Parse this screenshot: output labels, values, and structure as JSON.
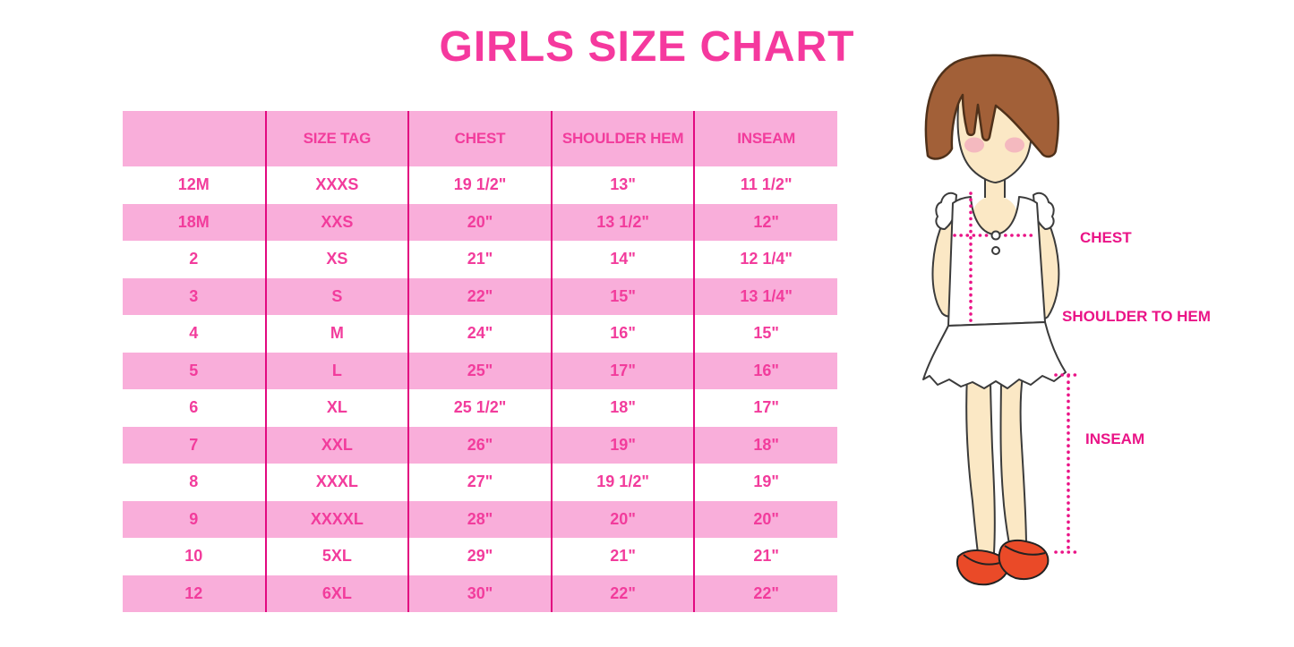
{
  "title": "GIRLS SIZE CHART",
  "chart_data": {
    "type": "table",
    "title": "GIRLS SIZE CHART",
    "columns": [
      "",
      "SIZE TAG",
      "CHEST",
      "SHOULDER HEM",
      "INSEAM"
    ],
    "rows": [
      [
        "12M",
        "XXXS",
        "19 1/2\"",
        "13\"",
        "11 1/2\""
      ],
      [
        "18M",
        "XXS",
        "20\"",
        "13 1/2\"",
        "12\""
      ],
      [
        "2",
        "XS",
        "21\"",
        "14\"",
        "12 1/4\""
      ],
      [
        "3",
        "S",
        "22\"",
        "15\"",
        "13 1/4\""
      ],
      [
        "4",
        "M",
        "24\"",
        "16\"",
        "15\""
      ],
      [
        "5",
        "L",
        "25\"",
        "17\"",
        "16\""
      ],
      [
        "6",
        "XL",
        "25 1/2\"",
        "18\"",
        "17\""
      ],
      [
        "7",
        "XXL",
        "26\"",
        "19\"",
        "18\""
      ],
      [
        "8",
        "XXXL",
        "27\"",
        "19 1/2\"",
        "19\""
      ],
      [
        "9",
        "XXXXL",
        "28\"",
        "20\"",
        "20\""
      ],
      [
        "10",
        "5XL",
        "29\"",
        "21\"",
        "21\""
      ],
      [
        "12",
        "6XL",
        "30\"",
        "22\"",
        "22\""
      ]
    ]
  },
  "diagram": {
    "chest_label": "CHEST",
    "shoulder_to_hem_label": "SHOULDER TO HEM",
    "inseam_label": "INSEAM"
  },
  "colors": {
    "title_text": "#F5399E",
    "accent_text": "#F23C9C",
    "row_pink": "#F9AEDA",
    "column_line": "#E20980",
    "dotted_line": "#EA1487",
    "hair": "#A26038",
    "hair_outline": "#4F311A",
    "skin": "#FBE8C5",
    "outline": "#3B3B3B",
    "blush": "#F2ACBD",
    "shoe": "#EA4A28"
  }
}
